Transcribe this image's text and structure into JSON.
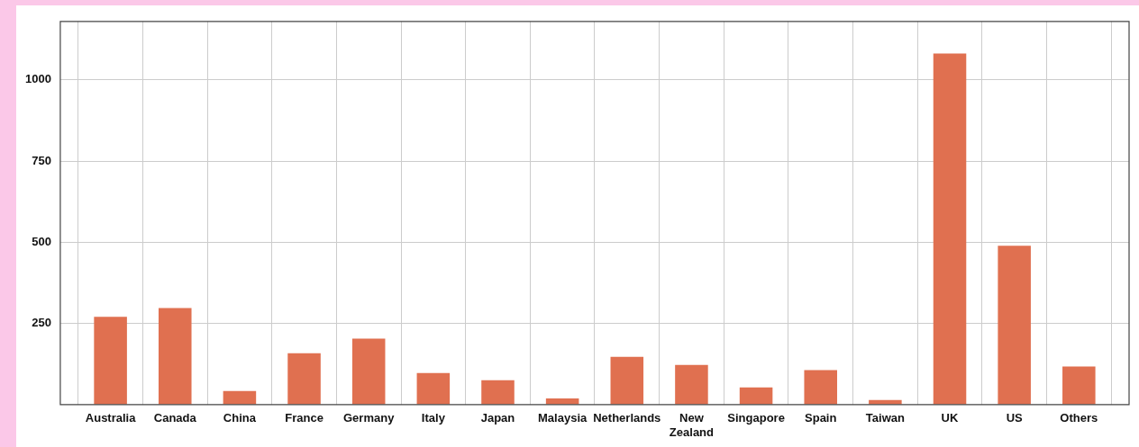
{
  "chart_data": {
    "type": "bar",
    "categories": [
      "Australia",
      "Canada",
      "China",
      "France",
      "Germany",
      "Italy",
      "Japan",
      "Malaysia",
      "Netherlands",
      "New Zealand",
      "Singapore",
      "Spain",
      "Taiwan",
      "UK",
      "US",
      "Others"
    ],
    "values": [
      270,
      297,
      42,
      158,
      203,
      97,
      75,
      19,
      147,
      122,
      53,
      106,
      14,
      1081,
      489,
      117
    ],
    "color": "#e07050",
    "ylim": [
      0,
      1180
    ],
    "yticks": [
      250,
      500,
      750,
      1000
    ],
    "grid": true
  }
}
